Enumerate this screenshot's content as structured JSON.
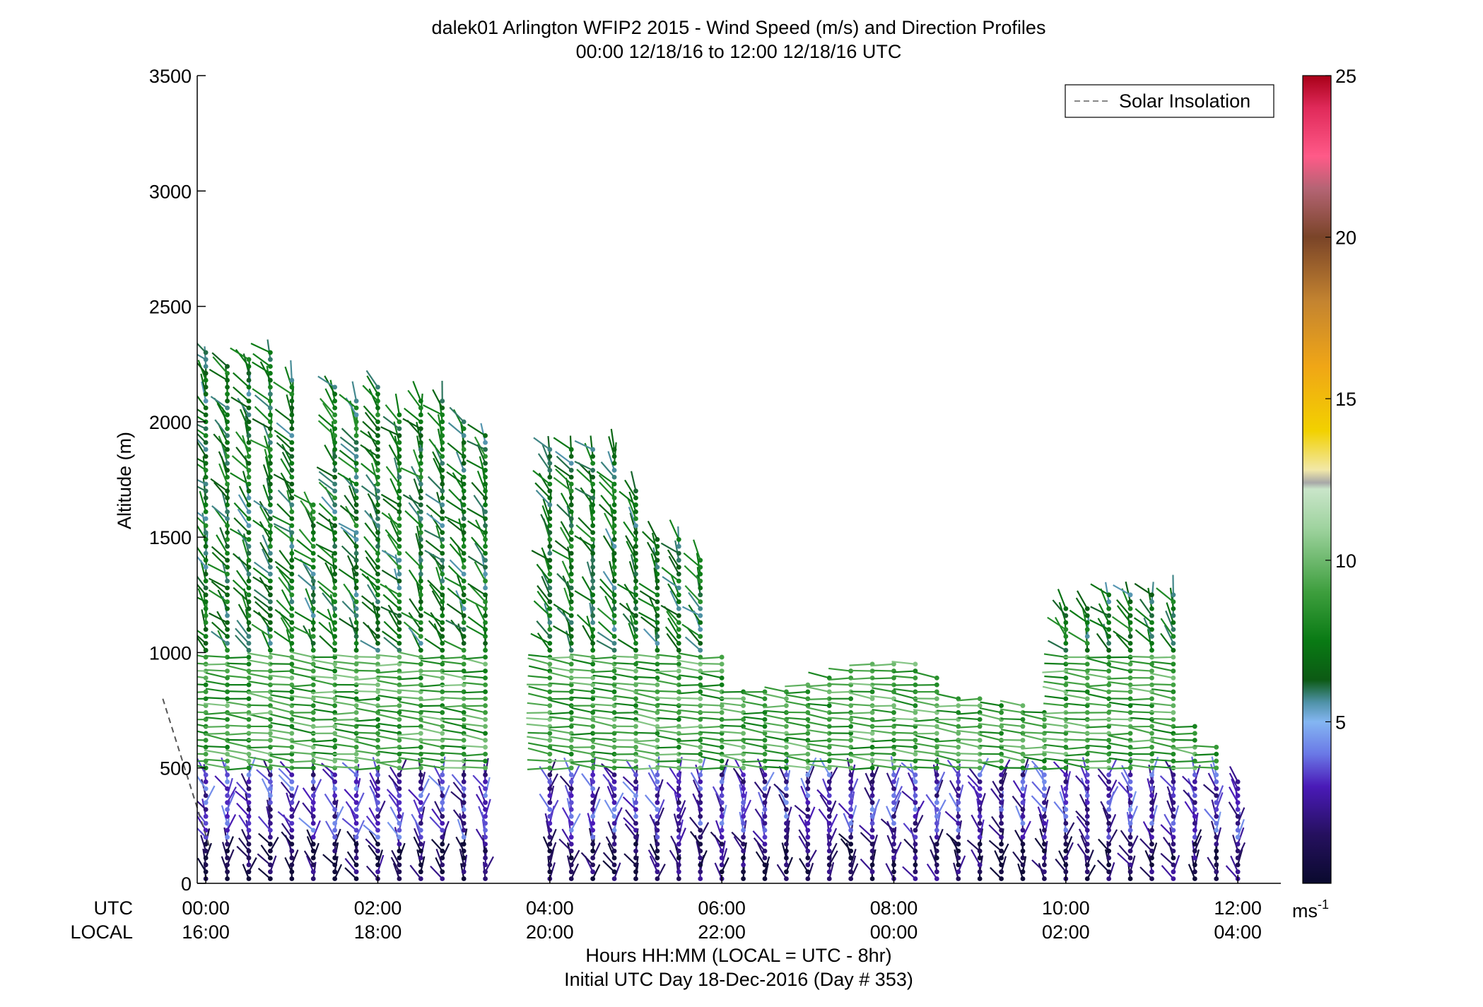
{
  "chart_data": {
    "type": "wind_barb_profile",
    "title": "dalek01 Arlington WFIP2 2015 - Wind Speed (m/s) and Direction Profiles",
    "subtitle": "00:00 12/18/16 to 12:00 12/18/16  UTC",
    "ylabel": "Altitude (m)",
    "xlabel": "Hours HH:MM  (LOCAL = UTC - 8hr)",
    "xlabel2": "Initial UTC Day 18-Dec-2016 (Day # 353)",
    "row_label_utc": "UTC",
    "row_label_local": "LOCAL",
    "xlim": [
      -0.1,
      12.5
    ],
    "ylim": [
      0,
      3500
    ],
    "yticks": [
      0,
      500,
      1000,
      1500,
      2000,
      2500,
      3000,
      3500
    ],
    "ytick_labels": [
      "0",
      "500",
      "1000",
      "1500",
      "2000",
      "2500",
      "3000",
      "3500"
    ],
    "xticks": [
      0,
      2,
      4,
      6,
      8,
      10,
      12
    ],
    "xtick_labels_utc": [
      "00:00",
      "02:00",
      "04:00",
      "06:00",
      "08:00",
      "10:00",
      "12:00"
    ],
    "xtick_labels_local": [
      "16:00",
      "18:00",
      "20:00",
      "22:00",
      "00:00",
      "02:00",
      "04:00"
    ],
    "legend": {
      "label": "Solar Insolation",
      "position": "top-right",
      "color": "#888888"
    },
    "solar_insolation_line": {
      "x": [
        -0.5,
        0.05
      ],
      "y": [
        800,
        150
      ]
    },
    "colorbar": {
      "ticks": [
        5,
        10,
        15,
        20,
        25
      ],
      "tick_labels": [
        "5",
        "10",
        "15",
        "20",
        "25"
      ],
      "unit_label": "ms",
      "unit_exponent": "-1",
      "range": [
        0,
        25
      ],
      "stops": [
        {
          "v": 0,
          "c": "#0a0a2e"
        },
        {
          "v": 1.5,
          "c": "#25105e"
        },
        {
          "v": 3,
          "c": "#4a1ab8"
        },
        {
          "v": 4,
          "c": "#6a78e6"
        },
        {
          "v": 5,
          "c": "#84b6f2"
        },
        {
          "v": 5.6,
          "c": "#4f92a8"
        },
        {
          "v": 6.3,
          "c": "#0c5a14"
        },
        {
          "v": 7.5,
          "c": "#097a14"
        },
        {
          "v": 9,
          "c": "#3d9e3d"
        },
        {
          "v": 11,
          "c": "#9fd39f"
        },
        {
          "v": 12.2,
          "c": "#c9e5c9"
        },
        {
          "v": 12.4,
          "c": "#a8a8a8"
        },
        {
          "v": 12.8,
          "c": "#f2e8a8"
        },
        {
          "v": 14,
          "c": "#f2d100"
        },
        {
          "v": 16,
          "c": "#f0a616"
        },
        {
          "v": 18,
          "c": "#c48430"
        },
        {
          "v": 20,
          "c": "#7a4428"
        },
        {
          "v": 21.5,
          "c": "#b46474"
        },
        {
          "v": 22.5,
          "c": "#ff5a88"
        },
        {
          "v": 24,
          "c": "#e02a5a"
        },
        {
          "v": 25,
          "c": "#a80018"
        }
      ]
    },
    "profiles": {
      "times_utc_hours": [
        0,
        0.25,
        0.5,
        0.75,
        1.0,
        1.25,
        1.5,
        1.75,
        2.0,
        2.25,
        2.5,
        2.75,
        3.0,
        3.25,
        4.0,
        4.25,
        4.5,
        4.75,
        5.0,
        5.25,
        5.5,
        5.75,
        6.0,
        6.25,
        6.5,
        6.75,
        7.0,
        7.25,
        7.5,
        7.75,
        8.0,
        8.25,
        8.5,
        8.75,
        9.0,
        9.25,
        9.5,
        9.75,
        10.0,
        10.25,
        10.5,
        10.75,
        11.0,
        11.25,
        11.5,
        11.75,
        12.0
      ],
      "top_altitude_m": [
        2300,
        2250,
        2280,
        2300,
        2200,
        1650,
        2150,
        2100,
        2150,
        2050,
        2100,
        2100,
        2000,
        1950,
        1900,
        1900,
        1900,
        1900,
        1700,
        1500,
        1500,
        1400,
        1000,
        830,
        830,
        850,
        880,
        900,
        920,
        950,
        950,
        950,
        900,
        820,
        800,
        780,
        780,
        750,
        1200,
        1200,
        1250,
        1250,
        1250,
        1250,
        700,
        600,
        450
      ],
      "speed_by_layer": [
        {
          "below_m": 200,
          "speed_ms": 1.2
        },
        {
          "below_m": 480,
          "speed_ms": 3.0
        },
        {
          "below_m": 1000,
          "speed_ms": 9.0
        },
        {
          "below_m": 3500,
          "speed_ms": 7.0
        }
      ]
    }
  }
}
